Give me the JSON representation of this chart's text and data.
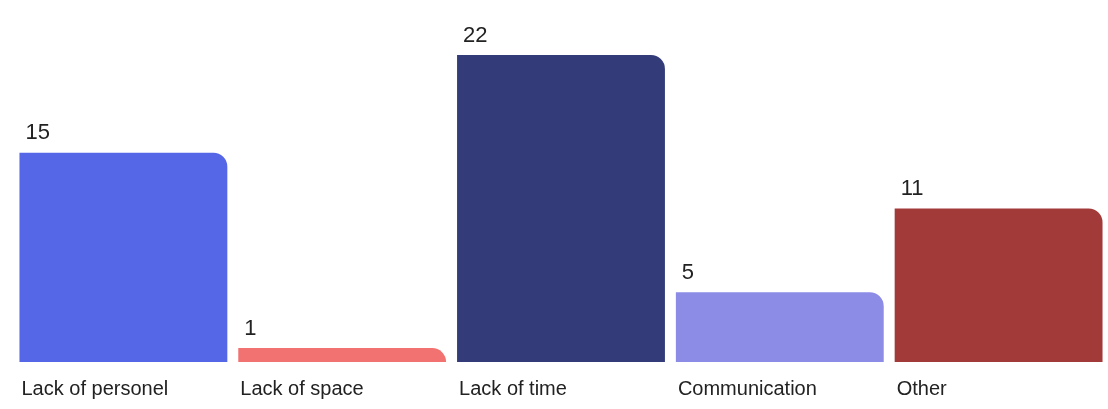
{
  "chart_data": {
    "type": "bar",
    "categories": [
      "Lack of personel",
      "Lack of space",
      "Lack of time",
      "Communication",
      "Other"
    ],
    "values": [
      15,
      1,
      22,
      5,
      11
    ],
    "colors": [
      "#5566e6",
      "#f27272",
      "#333b78",
      "#8c8ce6",
      "#a33a3a"
    ],
    "data_labels": true,
    "grid": false
  }
}
